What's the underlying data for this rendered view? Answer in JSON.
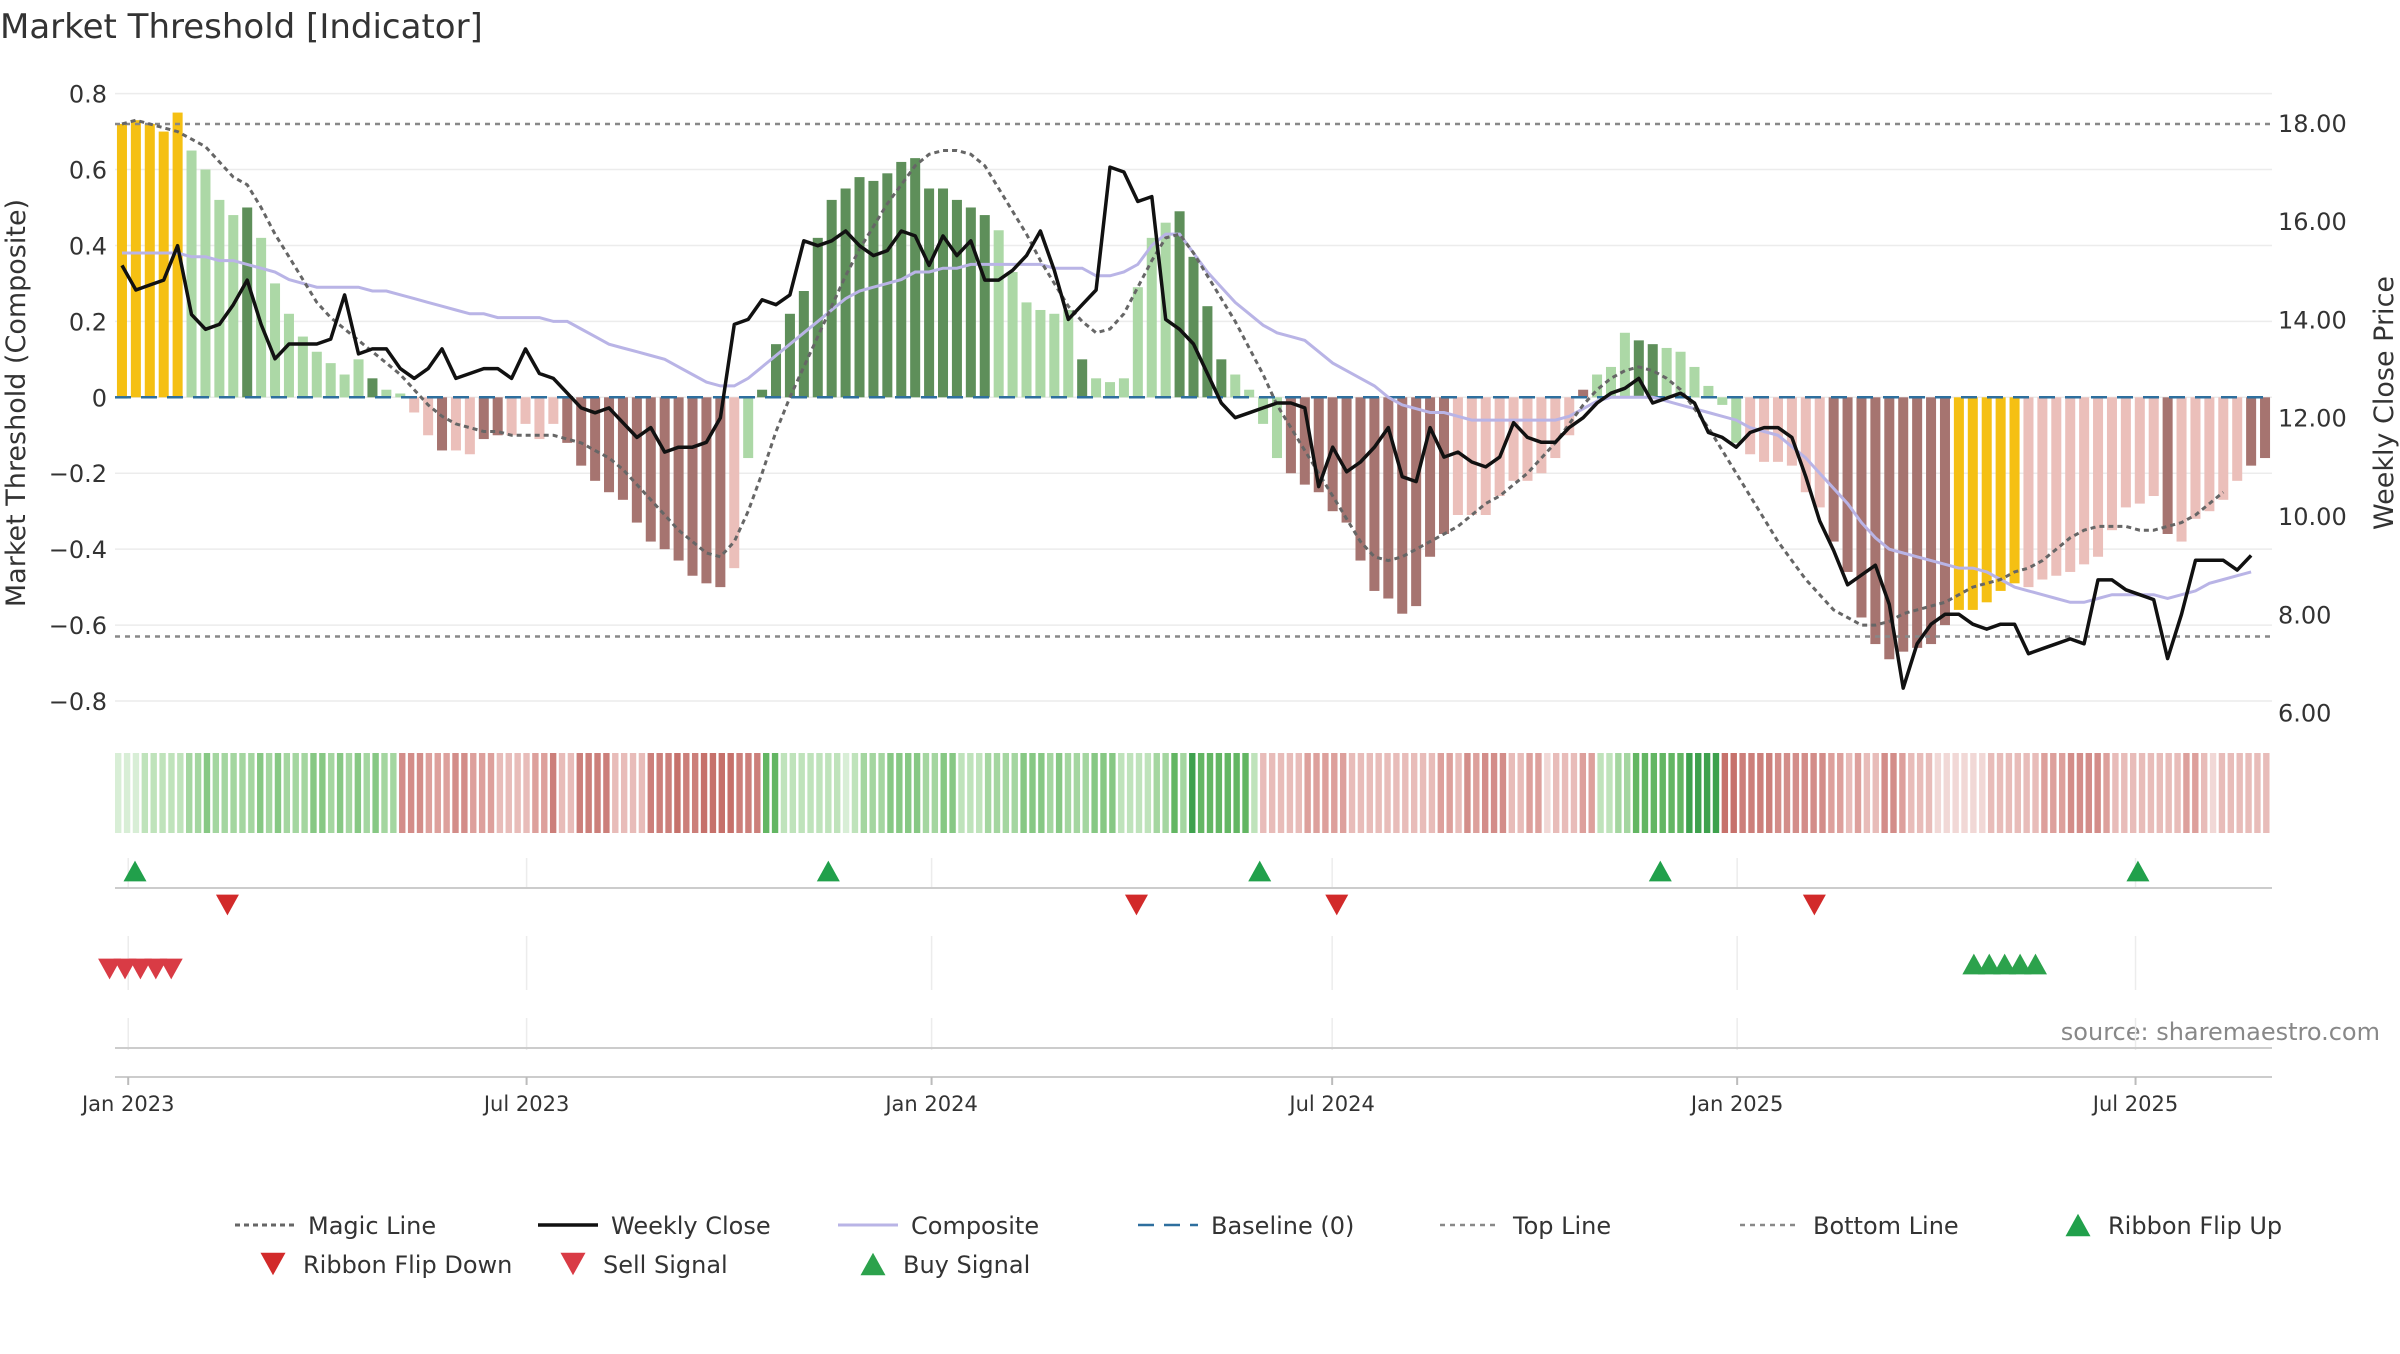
{
  "title": "Market Threshold [Indicator]",
  "source": "source: sharemaestro.com",
  "colors": {
    "gold": "#f5c013",
    "light_green": "#acd8a6",
    "dark_green": "#5e8f5a",
    "light_red": "#ebbfba",
    "dark_red": "#a67470",
    "close": "#111111",
    "composite": "#b9b4e6",
    "magic": "#666666",
    "baseline": "#2e6f9e",
    "ref": "#888888",
    "buy": "#2ca24c",
    "sell": "#d93b45",
    "flip_up": "#21a04b",
    "flip_down": "#d22a2a",
    "grid": "#ececec",
    "axis": "#cccccc"
  },
  "chart_data": {
    "type": "bar+line",
    "title": "Market Threshold [Indicator]",
    "ylabel": "Market Threshold (Composite)",
    "y2label": "Weekly Close Price",
    "ylim": [
      -0.85,
      0.82
    ],
    "y2lim": [
      5.85,
      18.75
    ],
    "yticks": [
      0.8,
      0.6,
      0.4,
      0.2,
      0,
      -0.2,
      -0.4,
      -0.6,
      -0.8
    ],
    "ytick_labels": [
      "0.8",
      "0.6",
      "0.4",
      "0.2",
      "0",
      "−0.2",
      "−0.4",
      "−0.6",
      "−0.8"
    ],
    "y2ticks": [
      18,
      16,
      14,
      12,
      10,
      8,
      6
    ],
    "y2tick_labels": [
      "18.00",
      "16.00",
      "14.00",
      "12.00",
      "10.00",
      "8.00",
      "6.00"
    ],
    "x_start": "2022-12-26",
    "x_end": "2025-09-01",
    "xtick_dates": [
      "2023-01-01",
      "2023-07-01",
      "2024-01-01",
      "2024-07-01",
      "2025-01-01",
      "2025-07-01"
    ],
    "xtick_labels": [
      "Jan 2023",
      "Jul 2023",
      "Jan 2024",
      "Jul 2024",
      "Jan 2025",
      "Jul 2025"
    ],
    "top_line": 0.72,
    "bottom_line": -0.63,
    "baseline": 0,
    "composite_bars": [
      0.72,
      0.73,
      0.72,
      0.7,
      0.75,
      0.65,
      0.6,
      0.52,
      0.48,
      0.5,
      0.42,
      0.3,
      0.22,
      0.16,
      0.12,
      0.09,
      0.06,
      0.1,
      0.05,
      0.02,
      0.01,
      -0.04,
      -0.1,
      -0.14,
      -0.14,
      -0.15,
      -0.11,
      -0.1,
      -0.1,
      -0.07,
      -0.11,
      -0.07,
      -0.12,
      -0.18,
      -0.22,
      -0.25,
      -0.27,
      -0.33,
      -0.38,
      -0.4,
      -0.43,
      -0.47,
      -0.49,
      -0.5,
      -0.45,
      -0.16,
      0.02,
      0.14,
      0.22,
      0.28,
      0.42,
      0.52,
      0.55,
      0.58,
      0.57,
      0.59,
      0.62,
      0.63,
      0.55,
      0.55,
      0.52,
      0.5,
      0.48,
      0.44,
      0.33,
      0.25,
      0.23,
      0.22,
      0.23,
      0.1,
      0.05,
      0.04,
      0.05,
      0.29,
      0.42,
      0.46,
      0.49,
      0.37,
      0.24,
      0.1,
      0.06,
      0.02,
      -0.07,
      -0.16,
      -0.2,
      -0.23,
      -0.25,
      -0.3,
      -0.33,
      -0.43,
      -0.51,
      -0.53,
      -0.57,
      -0.55,
      -0.42,
      -0.36,
      -0.31,
      -0.31,
      -0.31,
      -0.26,
      -0.22,
      -0.22,
      -0.2,
      -0.16,
      -0.1,
      0.02,
      0.06,
      0.08,
      0.17,
      0.15,
      0.14,
      0.13,
      0.12,
      0.08,
      0.03,
      -0.02,
      -0.12,
      -0.15,
      -0.17,
      -0.17,
      -0.18,
      -0.25,
      -0.29,
      -0.38,
      -0.46,
      -0.58,
      -0.65,
      -0.69,
      -0.67,
      -0.66,
      -0.65,
      -0.6,
      -0.56,
      -0.56,
      -0.54,
      -0.51,
      -0.49,
      -0.5,
      -0.48,
      -0.47,
      -0.46,
      -0.44,
      -0.42,
      -0.35,
      -0.29,
      -0.28,
      -0.26,
      -0.36,
      -0.38,
      -0.32,
      -0.3,
      -0.27,
      -0.22,
      -0.18,
      -0.16
    ],
    "bar_classes": "GGGGGLLLLDLLLLLLLLDLLKKRKKRRKKKKRRRRRRRRRRRRKLDDDDDDDDDDDDDDDDDLLLLLLDLLLLLLDDDDLLLLRRRRRRRRRRRRKKKKKKKKKRLLLDDLLLLLLKKKKKKRRRRRRRRRGGGGGKKKKKKKKKKRKKKKKRRKKKKKKKK",
    "weekly_close": [
      15.1,
      14.6,
      14.7,
      14.8,
      15.5,
      14.1,
      13.8,
      13.9,
      14.3,
      14.8,
      13.9,
      13.2,
      13.5,
      13.5,
      13.5,
      13.6,
      14.5,
      13.3,
      13.4,
      13.4,
      13.0,
      12.8,
      13.0,
      13.4,
      12.8,
      12.9,
      13.0,
      13.0,
      12.8,
      13.4,
      12.9,
      12.8,
      12.5,
      12.2,
      12.1,
      12.2,
      11.9,
      11.6,
      11.8,
      11.3,
      11.4,
      11.4,
      11.5,
      12.0,
      13.9,
      14.0,
      14.4,
      14.3,
      14.5,
      15.6,
      15.5,
      15.6,
      15.8,
      15.5,
      15.3,
      15.4,
      15.8,
      15.7,
      15.1,
      15.7,
      15.3,
      15.6,
      14.8,
      14.8,
      15.0,
      15.3,
      15.8,
      15.0,
      14.0,
      14.3,
      14.6,
      17.1,
      17.0,
      16.4,
      16.5,
      14.0,
      13.8,
      13.5,
      12.9,
      12.3,
      12.0,
      12.1,
      12.2,
      12.3,
      12.3,
      12.2,
      10.6,
      11.4,
      10.9,
      11.1,
      11.4,
      11.8,
      10.8,
      10.7,
      11.8,
      11.2,
      11.3,
      11.1,
      11.0,
      11.2,
      11.9,
      11.6,
      11.5,
      11.5,
      11.8,
      12.0,
      12.3,
      12.5,
      12.6,
      12.8,
      12.3,
      12.4,
      12.5,
      12.3,
      11.7,
      11.6,
      11.4,
      11.7,
      11.8,
      11.8,
      11.6,
      10.8,
      9.9,
      9.3,
      8.6,
      8.8,
      9.0,
      8.2,
      6.5,
      7.4,
      7.8,
      8.0,
      8.0,
      7.8,
      7.7,
      7.8,
      7.8,
      7.2,
      7.3,
      7.4,
      7.5,
      7.4,
      8.7,
      8.7,
      8.5,
      8.4,
      8.3,
      7.1,
      8.0,
      9.1,
      9.1,
      9.1,
      8.9,
      9.2
    ],
    "composite_line": [
      0.38,
      0.38,
      0.38,
      0.38,
      0.38,
      0.37,
      0.37,
      0.36,
      0.36,
      0.35,
      0.34,
      0.33,
      0.31,
      0.3,
      0.29,
      0.29,
      0.29,
      0.29,
      0.28,
      0.28,
      0.27,
      0.26,
      0.25,
      0.24,
      0.23,
      0.22,
      0.22,
      0.21,
      0.21,
      0.21,
      0.21,
      0.2,
      0.2,
      0.18,
      0.16,
      0.14,
      0.13,
      0.12,
      0.11,
      0.1,
      0.08,
      0.06,
      0.04,
      0.03,
      0.03,
      0.05,
      0.08,
      0.11,
      0.14,
      0.17,
      0.2,
      0.23,
      0.26,
      0.28,
      0.29,
      0.3,
      0.31,
      0.33,
      0.33,
      0.34,
      0.34,
      0.35,
      0.35,
      0.35,
      0.35,
      0.35,
      0.35,
      0.34,
      0.34,
      0.34,
      0.32,
      0.32,
      0.33,
      0.35,
      0.4,
      0.43,
      0.43,
      0.38,
      0.33,
      0.29,
      0.25,
      0.22,
      0.19,
      0.17,
      0.16,
      0.15,
      0.12,
      0.09,
      0.07,
      0.05,
      0.03,
      0.0,
      -0.02,
      -0.03,
      -0.04,
      -0.04,
      -0.05,
      -0.06,
      -0.06,
      -0.06,
      -0.06,
      -0.06,
      -0.06,
      -0.06,
      -0.05,
      -0.03,
      -0.01,
      0.0,
      0.0,
      0.0,
      0.0,
      -0.01,
      -0.02,
      -0.03,
      -0.04,
      -0.05,
      -0.06,
      -0.08,
      -0.09,
      -0.1,
      -0.13,
      -0.16,
      -0.2,
      -0.24,
      -0.28,
      -0.33,
      -0.37,
      -0.4,
      -0.41,
      -0.42,
      -0.43,
      -0.44,
      -0.45,
      -0.45,
      -0.46,
      -0.48,
      -0.5,
      -0.51,
      -0.52,
      -0.53,
      -0.54,
      -0.54,
      -0.53,
      -0.52,
      -0.52,
      -0.52,
      -0.52,
      -0.53,
      -0.52,
      -0.51,
      -0.49,
      -0.48,
      -0.47,
      -0.46
    ],
    "magic_line": [
      0.72,
      0.73,
      0.72,
      0.71,
      0.7,
      0.68,
      0.66,
      0.62,
      0.58,
      0.56,
      0.5,
      0.43,
      0.37,
      0.31,
      0.25,
      0.21,
      0.18,
      0.15,
      0.12,
      0.09,
      0.06,
      0.02,
      -0.02,
      -0.05,
      -0.07,
      -0.08,
      -0.09,
      -0.09,
      -0.1,
      -0.1,
      -0.1,
      -0.1,
      -0.11,
      -0.12,
      -0.14,
      -0.16,
      -0.19,
      -0.23,
      -0.27,
      -0.31,
      -0.35,
      -0.38,
      -0.41,
      -0.42,
      -0.38,
      -0.3,
      -0.2,
      -0.09,
      0.0,
      0.08,
      0.16,
      0.24,
      0.32,
      0.39,
      0.45,
      0.51,
      0.56,
      0.61,
      0.64,
      0.65,
      0.65,
      0.64,
      0.61,
      0.55,
      0.49,
      0.43,
      0.36,
      0.3,
      0.24,
      0.2,
      0.17,
      0.18,
      0.22,
      0.29,
      0.36,
      0.42,
      0.43,
      0.38,
      0.32,
      0.26,
      0.2,
      0.13,
      0.06,
      -0.02,
      -0.08,
      -0.14,
      -0.2,
      -0.26,
      -0.32,
      -0.38,
      -0.42,
      -0.43,
      -0.42,
      -0.4,
      -0.38,
      -0.36,
      -0.34,
      -0.31,
      -0.28,
      -0.26,
      -0.23,
      -0.2,
      -0.16,
      -0.12,
      -0.07,
      -0.02,
      0.02,
      0.05,
      0.07,
      0.08,
      0.07,
      0.05,
      0.02,
      -0.03,
      -0.08,
      -0.14,
      -0.2,
      -0.26,
      -0.32,
      -0.38,
      -0.43,
      -0.48,
      -0.52,
      -0.56,
      -0.58,
      -0.6,
      -0.6,
      -0.59,
      -0.57,
      -0.56,
      -0.55,
      -0.54,
      -0.52,
      -0.5,
      -0.49,
      -0.48,
      -0.46,
      -0.45,
      -0.43,
      -0.4,
      -0.37,
      -0.35,
      -0.34,
      -0.34,
      -0.34,
      -0.35,
      -0.35,
      -0.34,
      -0.33,
      -0.31,
      -0.28,
      -0.25
    ],
    "ribbon_levels": "aaabbbbbccdcccccdcdcccddcdcdcdccdddcccddcccbbbbccebbeeeebbbbeeefeeffffeeeeebbbbbbbabcccddddccddbbbccccdddcdcccdddbbbbccecfeeeeeebbbbbbcccccbbbbbbbbbbccbdcdddbbccabbbccbbcceeeeeeffffffeeeeddddddccbcbbddcbbbaaaaaabbbbbbcccddddcbbbbbbbbccbabbbbbb",
    "ribbon_flip_up": [
      "2022-12-26",
      "2023-11-06",
      "2024-05-20",
      "2024-11-18",
      "2025-06-23"
    ],
    "ribbon_flip_down": [
      "2023-02-06",
      "2024-03-25",
      "2024-06-24",
      "2025-01-27"
    ],
    "buy_signals": [
      "2025-04-14",
      "2025-04-21",
      "2025-04-28",
      "2025-05-05",
      "2025-05-12"
    ],
    "sell_signals": [
      "2022-12-19",
      "2022-12-26",
      "2023-01-02",
      "2023-01-09",
      "2023-01-16"
    ],
    "legend": [
      "Magic Line",
      "Weekly Close",
      "Composite",
      "Baseline (0)",
      "Top Line",
      "Bottom Line",
      "Ribbon Flip Up",
      "Ribbon Flip Down",
      "Sell Signal",
      "Buy Signal"
    ]
  }
}
